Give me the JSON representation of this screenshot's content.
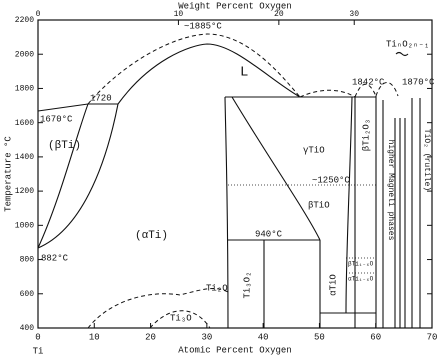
{
  "chart_data": {
    "type": "phase-diagram",
    "x2_title": "Weight Percent Oxygen",
    "ylabel": "Temperature °C",
    "xlabel": "Atomic Percent Oxygen",
    "x_start_label": "Ti",
    "xlim": [
      0,
      70
    ],
    "xticks": [
      0,
      10,
      20,
      30,
      40,
      50,
      60,
      70
    ],
    "x2ticks": [
      0,
      10,
      20,
      30
    ],
    "ylim": [
      400,
      2200
    ],
    "yticks": [
      400,
      600,
      800,
      1000,
      1200,
      1400,
      1600,
      1800,
      2000,
      2200
    ],
    "annotations": [
      "L",
      "(βTi)",
      "(αTi)",
      "1670°C",
      "1720",
      "~1885°C",
      "882°C",
      "940°C",
      "~1250°C",
      "γTiO",
      "βTiO",
      "Ti₃O₂",
      "αTiO",
      "Ti₂O",
      "Ti₃O",
      "βTi₁₋ₓO",
      "αTi₁₋ₓO",
      "βTi₂O₃",
      "1842°C",
      "1870°C",
      "TiₙO₂ₙ₋₁",
      "higher Magneli phases",
      "TiO₂ (rutile)"
    ]
  }
}
